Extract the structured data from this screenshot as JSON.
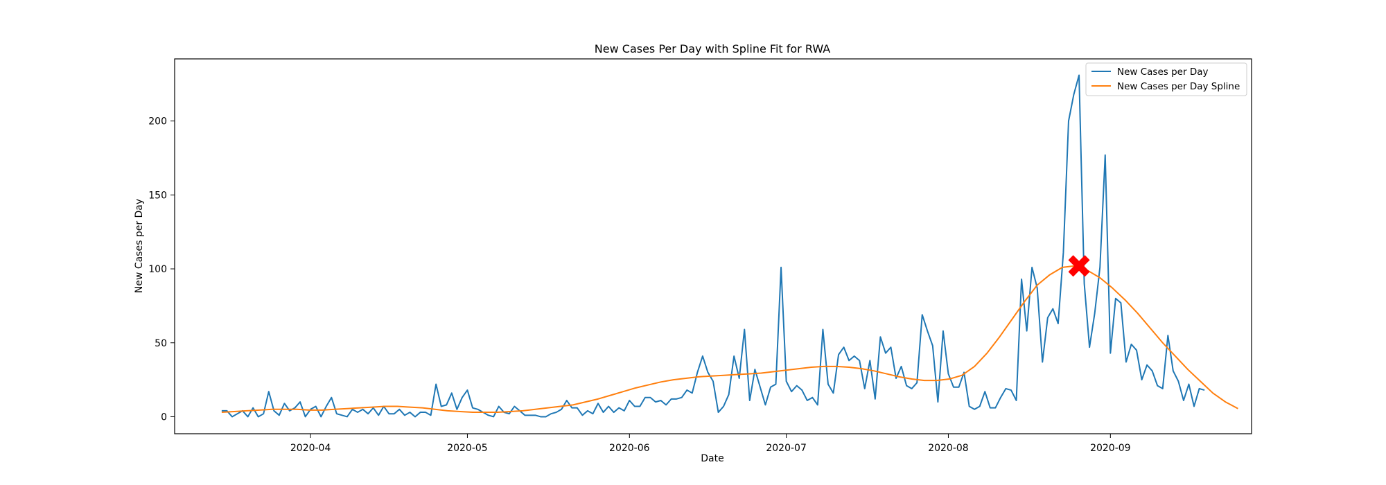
{
  "chart_data": {
    "type": "line",
    "title": "New Cases Per Day with Spline Fit for RWA",
    "xlabel": "Date",
    "ylabel": "New Cases per Day",
    "x_ticks": [
      "2020-04",
      "2020-05",
      "2020-06",
      "2020-07",
      "2020-08",
      "2020-09"
    ],
    "y_ticks": [
      0,
      50,
      100,
      150,
      200
    ],
    "ylim": [
      -11.5,
      242
    ],
    "xlim": [
      "2020-03-06",
      "2020-09-28"
    ],
    "grid": false,
    "legend_position": "top-right",
    "x_start": "2020-03-15",
    "series": [
      {
        "name": "New Cases per Day",
        "color": "#1f77b4",
        "values": [
          4,
          4,
          0,
          2,
          4,
          0,
          6,
          0,
          2,
          17,
          4,
          1,
          9,
          4,
          6,
          10,
          0,
          5,
          7,
          0,
          7,
          13,
          2,
          1,
          0,
          5,
          3,
          5,
          2,
          6,
          1,
          7,
          2,
          2,
          5,
          1,
          3,
          0,
          3,
          3,
          1,
          22,
          7,
          8,
          16,
          5,
          13,
          18,
          6,
          5,
          3,
          1,
          0,
          7,
          3,
          2,
          7,
          4,
          1,
          1,
          1,
          0,
          0,
          2,
          3,
          5,
          11,
          6,
          6,
          1,
          4,
          2,
          9,
          3,
          7,
          3,
          6,
          4,
          11,
          7,
          7,
          13,
          13,
          10,
          11,
          8,
          12,
          12,
          13,
          18,
          16,
          30,
          41,
          30,
          24,
          3,
          7,
          15,
          41,
          26,
          59,
          11,
          32,
          20,
          8,
          20,
          22,
          101,
          24,
          17,
          21,
          18,
          11,
          13,
          8,
          59,
          22,
          16,
          42,
          47,
          38,
          41,
          38,
          19,
          38,
          12,
          54,
          43,
          47,
          26,
          34,
          21,
          19,
          23,
          69,
          58,
          48,
          10,
          58,
          29,
          20,
          20,
          30,
          7,
          5,
          7,
          17,
          6,
          6,
          13,
          19,
          18,
          11,
          93,
          58,
          101,
          87,
          37,
          67,
          73,
          63,
          111,
          200,
          218,
          231,
          90,
          47,
          70,
          101,
          177,
          43,
          80,
          77,
          37,
          49,
          45,
          25,
          35,
          31,
          21,
          19,
          55,
          31,
          24,
          11,
          22,
          7,
          19,
          18
        ]
      },
      {
        "name": "New Cases per Day Spline",
        "color": "#ff7f0e",
        "values": [
          3,
          3.5,
          4,
          4.5,
          5,
          5,
          5,
          4.5,
          4.5,
          5,
          5.5,
          6,
          6.5,
          7,
          7,
          6.5,
          6,
          5,
          4,
          3.5,
          3,
          3,
          3,
          3.5,
          4,
          5,
          6,
          7,
          8,
          10,
          12,
          14.5,
          17,
          19.5,
          21.5,
          23.5,
          25,
          26,
          27,
          27.5,
          28,
          28.5,
          29,
          29.5,
          30.5,
          31.5,
          32.5,
          33.5,
          34,
          34,
          33.5,
          32.5,
          31,
          29,
          27,
          25.5,
          24.5,
          24.5,
          25.5,
          28,
          34,
          43,
          54,
          66,
          78,
          89,
          96,
          101,
          102,
          99,
          94,
          87,
          79,
          70,
          60,
          50,
          41,
          32,
          24,
          16,
          10,
          5.5
        ]
      }
    ],
    "spline_step_days": 2.4,
    "peak_marker": {
      "date": "2020-08-26",
      "value": 102,
      "color": "#ff0000"
    },
    "axis_color": "#000000",
    "background": "#ffffff"
  }
}
